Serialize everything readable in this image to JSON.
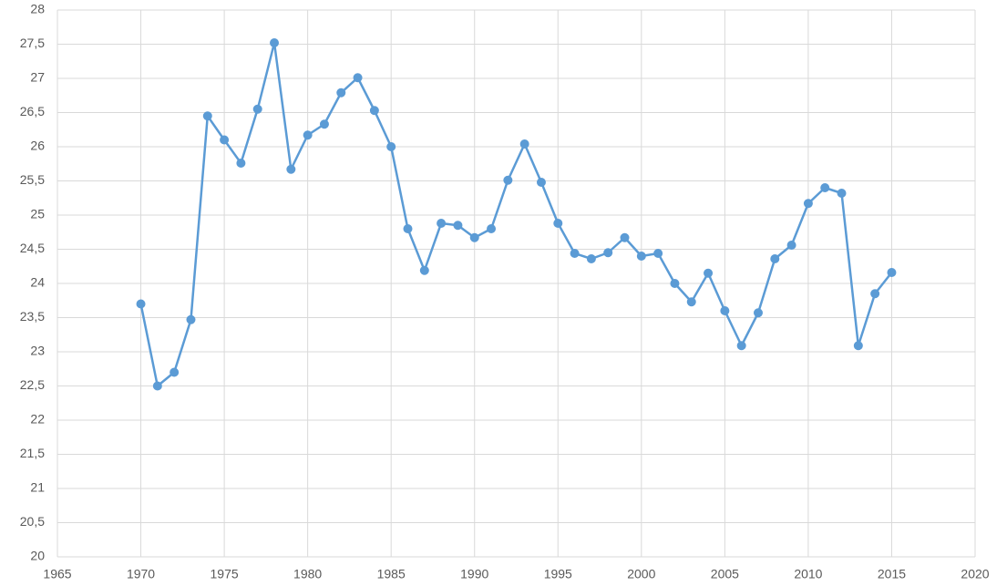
{
  "chart_data": {
    "type": "line",
    "x": [
      1970,
      1971,
      1972,
      1973,
      1974,
      1975,
      1976,
      1977,
      1978,
      1979,
      1980,
      1981,
      1982,
      1983,
      1984,
      1985,
      1986,
      1987,
      1988,
      1989,
      1990,
      1991,
      1992,
      1993,
      1994,
      1995,
      1996,
      1997,
      1998,
      1999,
      2000,
      2001,
      2002,
      2003,
      2004,
      2005,
      2006,
      2007,
      2008,
      2009,
      2010,
      2011,
      2012,
      2013,
      2014,
      2015
    ],
    "values": [
      23.7,
      22.5,
      22.7,
      23.47,
      26.45,
      26.1,
      25.76,
      26.55,
      27.52,
      25.67,
      26.17,
      26.33,
      26.79,
      27.01,
      26.53,
      26.0,
      24.8,
      24.19,
      24.88,
      24.85,
      24.67,
      24.8,
      25.51,
      26.04,
      25.48,
      24.88,
      24.44,
      24.36,
      24.45,
      24.67,
      24.4,
      24.44,
      24.0,
      23.73,
      24.15,
      23.6,
      23.09,
      23.57,
      24.36,
      24.56,
      25.17,
      25.4,
      25.32,
      23.09,
      23.85,
      24.16
    ],
    "color": "#5b9bd5",
    "xlim": [
      1965,
      2020
    ],
    "xticks": [
      1965,
      1970,
      1975,
      1980,
      1985,
      1990,
      1995,
      2000,
      2005,
      2010,
      2015,
      2020
    ],
    "ylim": [
      20,
      28
    ],
    "yticks": [
      20,
      {
        "value": 20.5,
        "label": "20,5"
      },
      21,
      {
        "value": 21.5,
        "label": "21,5"
      },
      22,
      {
        "value": 22.5,
        "label": "22,5"
      },
      23,
      {
        "value": 23.5,
        "label": "23,5"
      },
      24,
      {
        "value": 24.5,
        "label": "24,5"
      },
      25,
      {
        "value": 25.5,
        "label": "25,5"
      },
      26,
      {
        "value": 26.5,
        "label": "26,5"
      },
      27,
      {
        "value": 27.5,
        "label": "27,5"
      },
      28
    ],
    "grid": true
  }
}
